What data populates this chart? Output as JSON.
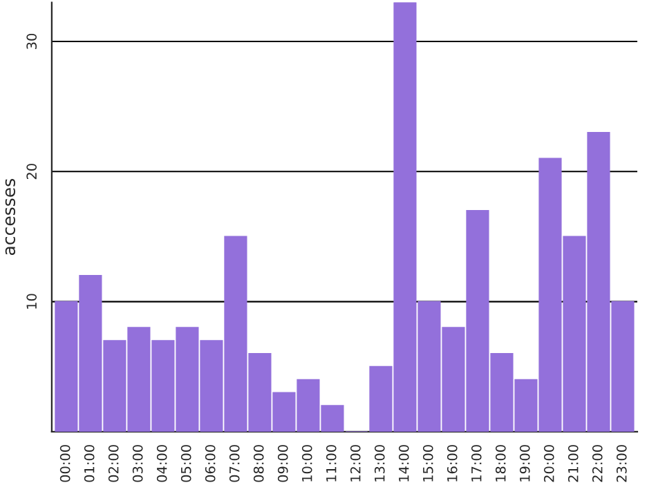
{
  "chart_data": {
    "type": "bar",
    "ylabel": "accesses",
    "categories": [
      "00:00",
      "01:00",
      "02:00",
      "03:00",
      "04:00",
      "05:00",
      "06:00",
      "07:00",
      "08:00",
      "09:00",
      "10:00",
      "11:00",
      "12:00",
      "13:00",
      "14:00",
      "15:00",
      "16:00",
      "17:00",
      "18:00",
      "19:00",
      "20:00",
      "21:00",
      "22:00",
      "23:00"
    ],
    "values": [
      10,
      12,
      7,
      8,
      7,
      8,
      7,
      15,
      6,
      3,
      4,
      2,
      0,
      5,
      33,
      10,
      8,
      17,
      6,
      4,
      21,
      15,
      23,
      10
    ],
    "color": "#9370db",
    "ylim": [
      0,
      33
    ],
    "yticks": [
      10,
      20,
      30
    ],
    "grid": "y"
  }
}
